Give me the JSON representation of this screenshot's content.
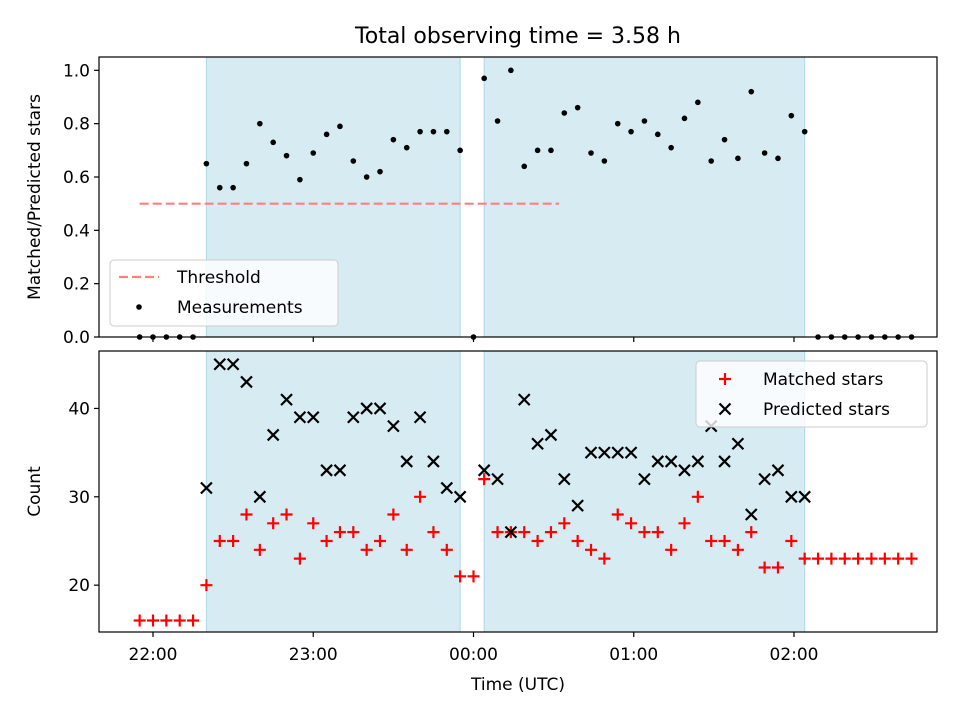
{
  "chart_data": {
    "title": "Total observing time = 3.58 h",
    "xlabel": "Time (UTC)",
    "x_tick_labels": [
      "22:00",
      "23:00",
      "00:00",
      "01:00",
      "02:00"
    ],
    "shaded_intervals": [
      [
        "22:20",
        "23:55"
      ],
      [
        "00:04",
        "02:04"
      ]
    ],
    "colors": {
      "shade": "#add8e6",
      "threshold": "#ff7f7f",
      "measurements": "#000000",
      "matched": "#ff0000",
      "predicted": "#000000"
    },
    "panels": [
      {
        "type": "scatter",
        "ylabel": "Matched/Predicted stars",
        "ylim": [
          0,
          1.05
        ],
        "y_tick_labels": [
          "0.0",
          "0.2",
          "0.4",
          "0.6",
          "0.8",
          "1.0"
        ],
        "legend_position": "lower-left",
        "threshold": {
          "name": "Threshold",
          "value": 0.5,
          "x_range": [
            "21:55",
            "00:32"
          ]
        },
        "series": [
          {
            "name": "Measurements",
            "marker": "dot",
            "points": [
              [
                "21:55",
                0.0
              ],
              [
                "22:00",
                0.0
              ],
              [
                "22:05",
                0.0
              ],
              [
                "22:10",
                0.0
              ],
              [
                "22:15",
                0.0
              ],
              [
                "22:20",
                0.65
              ],
              [
                "22:25",
                0.56
              ],
              [
                "22:30",
                0.56
              ],
              [
                "22:35",
                0.65
              ],
              [
                "22:40",
                0.8
              ],
              [
                "22:45",
                0.73
              ],
              [
                "22:50",
                0.68
              ],
              [
                "22:55",
                0.59
              ],
              [
                "23:00",
                0.69
              ],
              [
                "23:05",
                0.76
              ],
              [
                "23:10",
                0.79
              ],
              [
                "23:15",
                0.66
              ],
              [
                "23:20",
                0.6
              ],
              [
                "23:25",
                0.62
              ],
              [
                "23:30",
                0.74
              ],
              [
                "23:35",
                0.71
              ],
              [
                "23:40",
                0.77
              ],
              [
                "23:45",
                0.77
              ],
              [
                "23:50",
                0.77
              ],
              [
                "23:55",
                0.7
              ],
              [
                "00:00",
                0.0
              ],
              [
                "00:04",
                0.97
              ],
              [
                "00:09",
                0.81
              ],
              [
                "00:14",
                1.0
              ],
              [
                "00:19",
                0.64
              ],
              [
                "00:24",
                0.7
              ],
              [
                "00:29",
                0.7
              ],
              [
                "00:34",
                0.84
              ],
              [
                "00:39",
                0.86
              ],
              [
                "00:44",
                0.69
              ],
              [
                "00:49",
                0.66
              ],
              [
                "00:54",
                0.8
              ],
              [
                "00:59",
                0.77
              ],
              [
                "01:04",
                0.81
              ],
              [
                "01:09",
                0.76
              ],
              [
                "01:14",
                0.71
              ],
              [
                "01:19",
                0.82
              ],
              [
                "01:24",
                0.88
              ],
              [
                "01:29",
                0.66
              ],
              [
                "01:34",
                0.74
              ],
              [
                "01:39",
                0.67
              ],
              [
                "01:44",
                0.92
              ],
              [
                "01:49",
                0.69
              ],
              [
                "01:54",
                0.67
              ],
              [
                "01:59",
                0.83
              ],
              [
                "02:04",
                0.77
              ],
              [
                "02:09",
                0.0
              ],
              [
                "02:14",
                0.0
              ],
              [
                "02:19",
                0.0
              ],
              [
                "02:24",
                0.0
              ],
              [
                "02:29",
                0.0
              ],
              [
                "02:34",
                0.0
              ],
              [
                "02:39",
                0.0
              ],
              [
                "02:44",
                0.0
              ]
            ]
          }
        ]
      },
      {
        "type": "scatter",
        "ylabel": "Count",
        "ylim": [
          14.7,
          46.5
        ],
        "y_tick_labels": [
          "20",
          "30",
          "40"
        ],
        "legend_position": "upper-right",
        "series": [
          {
            "name": "Matched stars",
            "marker": "plus",
            "points": [
              [
                "21:55",
                16
              ],
              [
                "22:00",
                16
              ],
              [
                "22:05",
                16
              ],
              [
                "22:10",
                16
              ],
              [
                "22:15",
                16
              ],
              [
                "22:20",
                20
              ],
              [
                "22:25",
                25
              ],
              [
                "22:30",
                25
              ],
              [
                "22:35",
                28
              ],
              [
                "22:40",
                24
              ],
              [
                "22:45",
                27
              ],
              [
                "22:50",
                28
              ],
              [
                "22:55",
                23
              ],
              [
                "23:00",
                27
              ],
              [
                "23:05",
                25
              ],
              [
                "23:10",
                26
              ],
              [
                "23:15",
                26
              ],
              [
                "23:20",
                24
              ],
              [
                "23:25",
                25
              ],
              [
                "23:30",
                28
              ],
              [
                "23:35",
                24
              ],
              [
                "23:40",
                30
              ],
              [
                "23:45",
                26
              ],
              [
                "23:50",
                24
              ],
              [
                "23:55",
                21
              ],
              [
                "00:00",
                21
              ],
              [
                "00:04",
                32
              ],
              [
                "00:09",
                26
              ],
              [
                "00:14",
                26
              ],
              [
                "00:19",
                26
              ],
              [
                "00:24",
                25
              ],
              [
                "00:29",
                26
              ],
              [
                "00:34",
                27
              ],
              [
                "00:39",
                25
              ],
              [
                "00:44",
                24
              ],
              [
                "00:49",
                23
              ],
              [
                "00:54",
                28
              ],
              [
                "00:59",
                27
              ],
              [
                "01:04",
                26
              ],
              [
                "01:09",
                26
              ],
              [
                "01:14",
                24
              ],
              [
                "01:19",
                27
              ],
              [
                "01:24",
                30
              ],
              [
                "01:29",
                25
              ],
              [
                "01:34",
                25
              ],
              [
                "01:39",
                24
              ],
              [
                "01:44",
                26
              ],
              [
                "01:49",
                22
              ],
              [
                "01:54",
                22
              ],
              [
                "01:59",
                25
              ],
              [
                "02:04",
                23
              ],
              [
                "02:09",
                23
              ],
              [
                "02:14",
                23
              ],
              [
                "02:19",
                23
              ],
              [
                "02:24",
                23
              ],
              [
                "02:29",
                23
              ],
              [
                "02:34",
                23
              ],
              [
                "02:39",
                23
              ],
              [
                "02:44",
                23
              ]
            ]
          },
          {
            "name": "Predicted stars",
            "marker": "x",
            "points": [
              [
                "22:20",
                31
              ],
              [
                "22:25",
                45
              ],
              [
                "22:30",
                45
              ],
              [
                "22:35",
                43
              ],
              [
                "22:40",
                30
              ],
              [
                "22:45",
                37
              ],
              [
                "22:50",
                41
              ],
              [
                "22:55",
                39
              ],
              [
                "23:00",
                39
              ],
              [
                "23:05",
                33
              ],
              [
                "23:10",
                33
              ],
              [
                "23:15",
                39
              ],
              [
                "23:20",
                40
              ],
              [
                "23:25",
                40
              ],
              [
                "23:30",
                38
              ],
              [
                "23:35",
                34
              ],
              [
                "23:40",
                39
              ],
              [
                "23:45",
                34
              ],
              [
                "23:50",
                31
              ],
              [
                "23:55",
                30
              ],
              [
                "00:04",
                33
              ],
              [
                "00:09",
                32
              ],
              [
                "00:14",
                26
              ],
              [
                "00:19",
                41
              ],
              [
                "00:24",
                36
              ],
              [
                "00:29",
                37
              ],
              [
                "00:34",
                32
              ],
              [
                "00:39",
                29
              ],
              [
                "00:44",
                35
              ],
              [
                "00:49",
                35
              ],
              [
                "00:54",
                35
              ],
              [
                "00:59",
                35
              ],
              [
                "01:04",
                32
              ],
              [
                "01:09",
                34
              ],
              [
                "01:14",
                34
              ],
              [
                "01:19",
                33
              ],
              [
                "01:24",
                34
              ],
              [
                "01:29",
                38
              ],
              [
                "01:34",
                34
              ],
              [
                "01:39",
                36
              ],
              [
                "01:44",
                28
              ],
              [
                "01:49",
                32
              ],
              [
                "01:54",
                33
              ],
              [
                "01:59",
                30
              ],
              [
                "02:04",
                30
              ]
            ]
          }
        ]
      }
    ]
  }
}
